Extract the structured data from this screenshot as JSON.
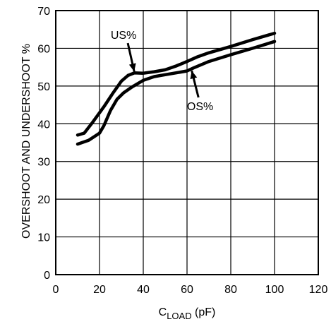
{
  "chart_data": {
    "type": "line",
    "xlim": [
      0,
      120
    ],
    "ylim": [
      0,
      70
    ],
    "x_ticks": [
      0,
      20,
      40,
      60,
      80,
      100,
      120
    ],
    "y_ticks": [
      0,
      10,
      20,
      30,
      40,
      50,
      60,
      70
    ],
    "xlabel_main": "C",
    "xlabel_sub": "LOAD",
    "xlabel_unit": " (pF)",
    "ylabel": "OVERSHOOT AND UNDERSHOOT %",
    "grid": true,
    "series": [
      {
        "name": "US%",
        "x": [
          10,
          13,
          17,
          22,
          26,
          30,
          33,
          36,
          40,
          45,
          50,
          55,
          60,
          65,
          70,
          80,
          90,
          100
        ],
        "y": [
          37,
          37.5,
          40.5,
          44.5,
          48,
          51.3,
          52.8,
          53.5,
          53.4,
          53.8,
          54.3,
          55.3,
          56.5,
          57.8,
          58.8,
          60.5,
          62.3,
          64
        ]
      },
      {
        "name": "OS%",
        "x": [
          10,
          15,
          20,
          22,
          25,
          28,
          31,
          35,
          40,
          45,
          50,
          55,
          60,
          63,
          70,
          80,
          90,
          100
        ],
        "y": [
          34.6,
          35.6,
          37.5,
          39.5,
          43.5,
          46.5,
          48.2,
          49.8,
          51.5,
          52.5,
          53,
          53.5,
          54,
          54.8,
          56.5,
          58.3,
          60,
          61.8
        ]
      }
    ],
    "annotations": [
      {
        "text": "US%",
        "x": 31,
        "y": 62.5,
        "point_x": 36,
        "point_y": 53.5
      },
      {
        "text": "OS%",
        "x": 66,
        "y": 43.6,
        "point_x": 62,
        "point_y": 54.4
      }
    ]
  }
}
